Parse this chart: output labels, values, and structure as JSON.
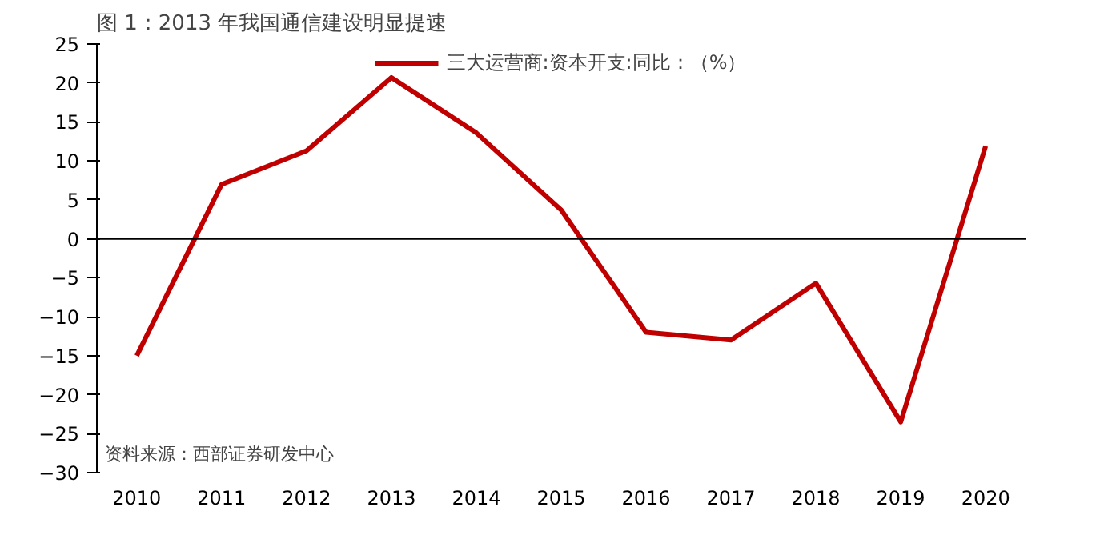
{
  "chart_data": {
    "type": "line",
    "title": "图 1：2013 年我国通信建设明显提速",
    "categories": [
      "2010",
      "2011",
      "2012",
      "2013",
      "2014",
      "2015",
      "2016",
      "2017",
      "2018",
      "2019",
      "2020"
    ],
    "series": [
      {
        "name": "三大运营商:资本开支:同比：（%）",
        "color": "#c00000",
        "values": [
          -15,
          7,
          11.3,
          20.7,
          13.6,
          3.7,
          -12,
          -13,
          -5.7,
          -23.5,
          11.9
        ]
      }
    ],
    "ylim": [
      -30,
      25
    ],
    "yticks": [
      -30,
      -25,
      -20,
      -15,
      -10,
      -5,
      0,
      5,
      10,
      15,
      20,
      25
    ],
    "ref_lines": [
      {
        "axis": "y",
        "value": 0,
        "color": "#000000"
      }
    ],
    "annotations": [
      "资料来源：西部证券研发中心"
    ],
    "legend": "top",
    "grid": false,
    "marker": "none",
    "line_style": "solid"
  }
}
